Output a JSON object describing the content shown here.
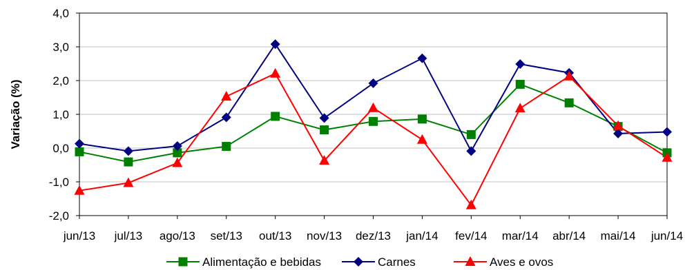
{
  "chart_data": {
    "type": "line",
    "title": "",
    "xlabel": "",
    "ylabel": "Variação (%)",
    "ylim": [
      -2.0,
      4.0
    ],
    "ytick_step": 1.0,
    "yticks": [
      "-2,0",
      "-1,0",
      "0,0",
      "1,0",
      "2,0",
      "3,0",
      "4,0"
    ],
    "grid": "horizontal",
    "legend_position": "bottom",
    "categories": [
      "jun/13",
      "jul/13",
      "ago/13",
      "set/13",
      "out/13",
      "nov/13",
      "dez/13",
      "jan/14",
      "fev/14",
      "mar/14",
      "abr/14",
      "mai/14",
      "jun/14"
    ],
    "series": [
      {
        "name": "Alimentação e bebidas",
        "color": "#008000",
        "marker": "square",
        "values": [
          -0.11,
          -0.41,
          -0.14,
          0.05,
          0.94,
          0.54,
          0.79,
          0.86,
          0.4,
          1.89,
          1.34,
          0.64,
          -0.14
        ]
      },
      {
        "name": "Carnes",
        "color": "#000080",
        "marker": "diamond",
        "values": [
          0.13,
          -0.09,
          0.06,
          0.91,
          3.08,
          0.89,
          1.92,
          2.66,
          -0.09,
          2.49,
          2.23,
          0.43,
          0.48
        ]
      },
      {
        "name": "Aves e ovos",
        "color": "#ff0000",
        "marker": "triangle",
        "values": [
          -1.26,
          -1.03,
          -0.44,
          1.53,
          2.21,
          -0.37,
          1.19,
          0.25,
          -1.69,
          1.18,
          2.13,
          0.66,
          -0.28
        ]
      }
    ]
  }
}
